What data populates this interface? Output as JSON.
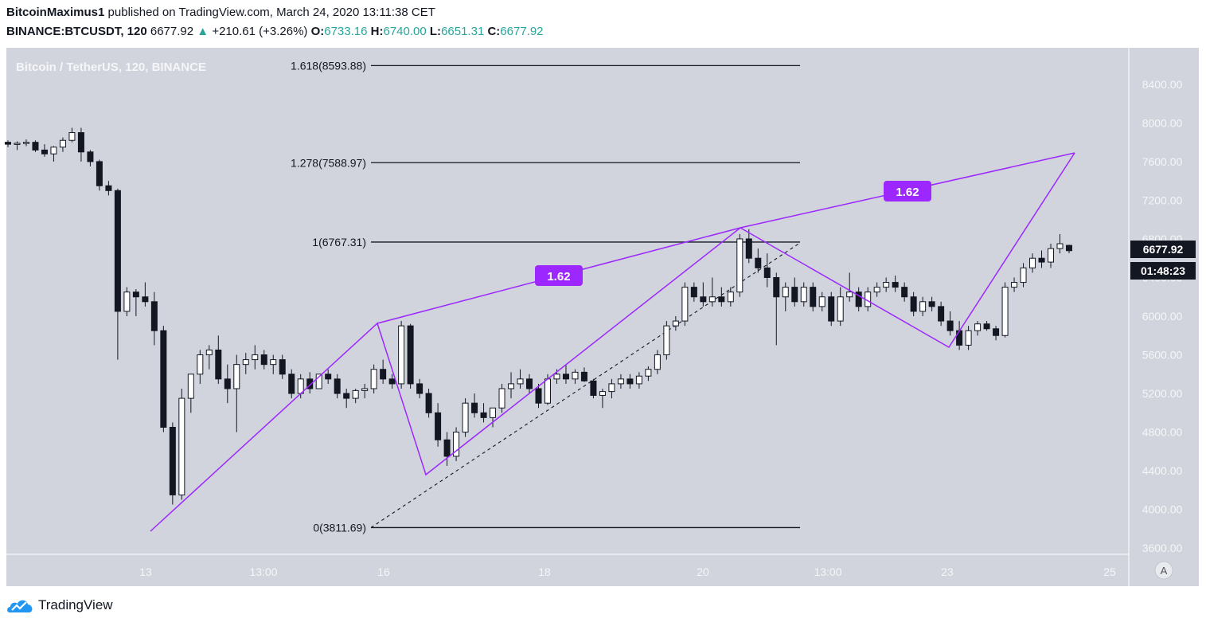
{
  "header": {
    "author": "BitcoinMaximus1",
    "published": "published on TradingView.com, March 24, 2020 13:11:38 CET",
    "symbol": "BINANCE:BTCUSDT, 120",
    "last": "6677.92",
    "change_arrow": "▲",
    "change": "+210.61 (+3.26%)",
    "o_label": "O:",
    "o_value": "6733.16",
    "h_label": "H:",
    "h_value": "6740.00",
    "l_label": "L:",
    "l_value": "6651.31",
    "c_label": "C:",
    "c_value": "6677.92"
  },
  "footer": {
    "logo_text": "TradingView",
    "logo_icon": "tradingview-cloud-icon"
  },
  "chart_data": {
    "type": "candlestick",
    "title": "Bitcoin / TetherUS, 120, BINANCE",
    "ylim": [
      3450,
      8800
    ],
    "y_ticks": [
      "8400.00",
      "8000.00",
      "7600.00",
      "7200.00",
      "6800.00",
      "6400.00",
      "6000.00",
      "5600.00",
      "5200.00",
      "4800.00",
      "4400.00",
      "4000.00",
      "3600.00"
    ],
    "x_ticks": [
      "13",
      "13:00",
      "16",
      "18",
      "20",
      "13:00",
      "23",
      "25"
    ],
    "price_label": "6677.92",
    "countdown_label": "01:48:23",
    "axis_mode_label": "A",
    "colors": {
      "background": "#d1d4dc",
      "up_candle": "#ffffff",
      "down_candle": "#131722",
      "pattern": "#9c27ff",
      "label_fill": "#9c27ff"
    },
    "fib_levels": [
      {
        "label": "1.618(8593.88)",
        "price": 8593.88
      },
      {
        "label": "1.278(7588.97)",
        "price": 7588.97
      },
      {
        "label": "1(6767.31)",
        "price": 6767.31
      },
      {
        "label": "0(3811.69)",
        "price": 3811.69
      }
    ],
    "pattern_labels": [
      "1.62",
      "1.62"
    ],
    "candles_ohlc": [
      [
        7800,
        7820,
        7750,
        7780
      ],
      [
        7780,
        7810,
        7720,
        7790
      ],
      [
        7790,
        7830,
        7760,
        7800
      ],
      [
        7800,
        7820,
        7700,
        7720
      ],
      [
        7720,
        7780,
        7650,
        7680
      ],
      [
        7680,
        7760,
        7600,
        7750
      ],
      [
        7750,
        7850,
        7700,
        7820
      ],
      [
        7820,
        7950,
        7800,
        7900
      ],
      [
        7900,
        7950,
        7600,
        7700
      ],
      [
        7700,
        7720,
        7550,
        7600
      ],
      [
        7600,
        7620,
        7300,
        7350
      ],
      [
        7350,
        7400,
        7250,
        7300
      ],
      [
        7300,
        7320,
        5550,
        6050
      ],
      [
        6050,
        6300,
        6000,
        6250
      ],
      [
        6250,
        6280,
        6000,
        6200
      ],
      [
        6200,
        6350,
        6100,
        6150
      ],
      [
        6150,
        6250,
        5700,
        5850
      ],
      [
        5850,
        5900,
        4800,
        4850
      ],
      [
        4850,
        4900,
        4050,
        4150
      ],
      [
        4150,
        5250,
        4100,
        5150
      ],
      [
        5150,
        5400,
        5000,
        5400
      ],
      [
        5400,
        5650,
        5300,
        5600
      ],
      [
        5600,
        5700,
        5450,
        5650
      ],
      [
        5650,
        5800,
        5300,
        5350
      ],
      [
        5350,
        5500,
        5100,
        5250
      ],
      [
        5250,
        5600,
        4800,
        5500
      ],
      [
        5500,
        5620,
        5400,
        5550
      ],
      [
        5550,
        5700,
        5450,
        5600
      ],
      [
        5600,
        5650,
        5450,
        5500
      ],
      [
        5500,
        5600,
        5400,
        5550
      ],
      [
        5550,
        5600,
        5350,
        5400
      ],
      [
        5400,
        5450,
        5150,
        5200
      ],
      [
        5200,
        5400,
        5150,
        5350
      ],
      [
        5350,
        5420,
        5200,
        5250
      ],
      [
        5250,
        5400,
        5250,
        5400
      ],
      [
        5400,
        5450,
        5300,
        5350
      ],
      [
        5350,
        5400,
        5150,
        5200
      ],
      [
        5200,
        5250,
        5050,
        5150
      ],
      [
        5150,
        5250,
        5100,
        5230
      ],
      [
        5230,
        5300,
        5150,
        5250
      ],
      [
        5250,
        5500,
        5200,
        5450
      ],
      [
        5450,
        5550,
        5300,
        5350
      ],
      [
        5350,
        5400,
        5250,
        5300
      ],
      [
        5300,
        5950,
        5250,
        5900
      ],
      [
        5900,
        5920,
        5250,
        5300
      ],
      [
        5300,
        5350,
        5150,
        5200
      ],
      [
        5200,
        5250,
        4950,
        5000
      ],
      [
        5000,
        5100,
        4650,
        4720
      ],
      [
        4720,
        4800,
        4450,
        4550
      ],
      [
        4550,
        4850,
        4500,
        4800
      ],
      [
        4800,
        5150,
        4750,
        5100
      ],
      [
        5100,
        5200,
        4950,
        5000
      ],
      [
        5000,
        5100,
        4900,
        4950
      ],
      [
        4950,
        5050,
        4850,
        5050
      ],
      [
        5050,
        5300,
        5000,
        5250
      ],
      [
        5250,
        5420,
        5150,
        5300
      ],
      [
        5300,
        5450,
        5250,
        5350
      ],
      [
        5350,
        5400,
        5200,
        5250
      ],
      [
        5250,
        5300,
        5050,
        5100
      ],
      [
        5100,
        5400,
        5080,
        5350
      ],
      [
        5350,
        5450,
        5300,
        5400
      ],
      [
        5400,
        5500,
        5300,
        5350
      ],
      [
        5350,
        5450,
        5300,
        5420
      ],
      [
        5420,
        5470,
        5320,
        5330
      ],
      [
        5330,
        5350,
        5150,
        5180
      ],
      [
        5180,
        5250,
        5050,
        5220
      ],
      [
        5220,
        5350,
        5150,
        5300
      ],
      [
        5300,
        5400,
        5250,
        5350
      ],
      [
        5350,
        5400,
        5250,
        5300
      ],
      [
        5300,
        5420,
        5250,
        5380
      ],
      [
        5380,
        5480,
        5330,
        5450
      ],
      [
        5450,
        5650,
        5400,
        5600
      ],
      [
        5600,
        5950,
        5550,
        5900
      ],
      [
        5900,
        6000,
        5850,
        5950
      ],
      [
        5950,
        6350,
        5900,
        6300
      ],
      [
        6300,
        6350,
        6150,
        6200
      ],
      [
        6200,
        6350,
        6100,
        6150
      ],
      [
        6150,
        6400,
        6100,
        6200
      ],
      [
        6200,
        6300,
        6100,
        6150
      ],
      [
        6150,
        6300,
        6100,
        6250
      ],
      [
        6250,
        6850,
        6200,
        6800
      ],
      [
        6800,
        6900,
        6550,
        6600
      ],
      [
        6600,
        6700,
        6450,
        6500
      ],
      [
        6500,
        6650,
        6300,
        6400
      ],
      [
        6400,
        6450,
        5700,
        6200
      ],
      [
        6200,
        6350,
        6050,
        6300
      ],
      [
        6300,
        6400,
        6100,
        6150
      ],
      [
        6150,
        6350,
        6100,
        6300
      ],
      [
        6300,
        6350,
        6050,
        6100
      ],
      [
        6100,
        6250,
        6050,
        6200
      ],
      [
        6200,
        6250,
        5900,
        5950
      ],
      [
        5950,
        6300,
        5900,
        6200
      ],
      [
        6200,
        6450,
        6150,
        6250
      ],
      [
        6250,
        6300,
        6050,
        6100
      ],
      [
        6100,
        6300,
        6050,
        6250
      ],
      [
        6250,
        6350,
        6200,
        6300
      ],
      [
        6300,
        6400,
        6250,
        6350
      ],
      [
        6350,
        6420,
        6250,
        6300
      ],
      [
        6300,
        6350,
        6150,
        6200
      ],
      [
        6200,
        6250,
        6000,
        6050
      ],
      [
        6050,
        6200,
        6000,
        6150
      ],
      [
        6150,
        6200,
        6050,
        6100
      ],
      [
        6100,
        6150,
        5900,
        5950
      ],
      [
        5950,
        6050,
        5800,
        5850
      ],
      [
        5850,
        5950,
        5650,
        5700
      ],
      [
        5700,
        5900,
        5650,
        5850
      ],
      [
        5850,
        5950,
        5800,
        5920
      ],
      [
        5920,
        5950,
        5850,
        5870
      ],
      [
        5870,
        5900,
        5750,
        5800
      ],
      [
        5800,
        6350,
        5780,
        6300
      ],
      [
        6300,
        6400,
        6250,
        6350
      ],
      [
        6350,
        6550,
        6300,
        6500
      ],
      [
        6500,
        6650,
        6450,
        6600
      ],
      [
        6600,
        6680,
        6500,
        6560
      ],
      [
        6560,
        6750,
        6500,
        6700
      ],
      [
        6700,
        6850,
        6650,
        6750
      ],
      [
        6733,
        6740,
        6651,
        6678
      ]
    ]
  }
}
